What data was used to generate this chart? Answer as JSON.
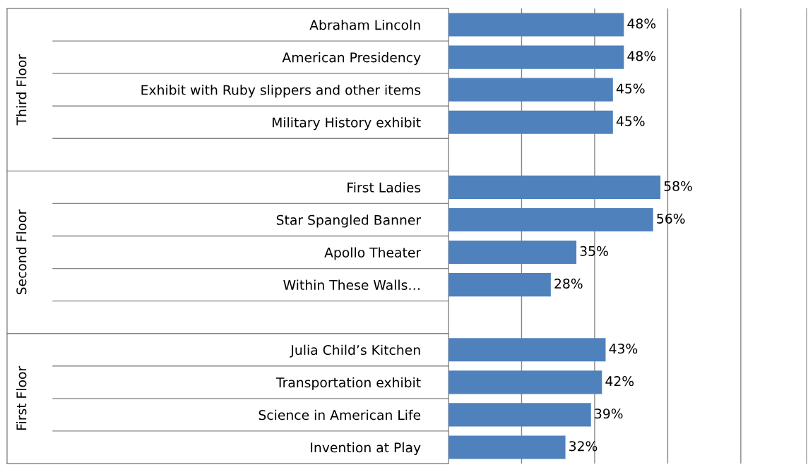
{
  "chart_data": {
    "type": "bar",
    "orientation": "horizontal",
    "categories": [
      "Abraham Lincoln",
      "American Presidency",
      "Exhibit with Ruby slippers and other items",
      "Military History exhibit",
      null,
      "First Ladies",
      "Star Spangled Banner",
      "Apollo Theater",
      "Within These Walls…",
      null,
      "Julia Child’s Kitchen",
      "Transportation exhibit",
      "Science in American Life",
      "Invention at Play"
    ],
    "values": [
      48,
      48,
      45,
      45,
      null,
      58,
      56,
      35,
      28,
      null,
      43,
      42,
      39,
      32
    ],
    "value_labels": [
      "48%",
      "48%",
      "45%",
      "45%",
      null,
      "58%",
      "56%",
      "35%",
      "28%",
      null,
      "43%",
      "42%",
      "39%",
      "32%"
    ],
    "color": "#4f81bd",
    "xlim": [
      0,
      98
    ],
    "xticks": [
      {
        "value": 0,
        "label": null
      },
      {
        "value": 20,
        "label": null
      },
      {
        "value": 40,
        "label": null
      },
      {
        "value": 60,
        "label": null
      },
      {
        "value": 80,
        "label": null
      }
    ],
    "grid": "x",
    "tick_labels": "y",
    "annotations": [
      "Third Floor",
      "Second Floor",
      "First Floor"
    ]
  }
}
